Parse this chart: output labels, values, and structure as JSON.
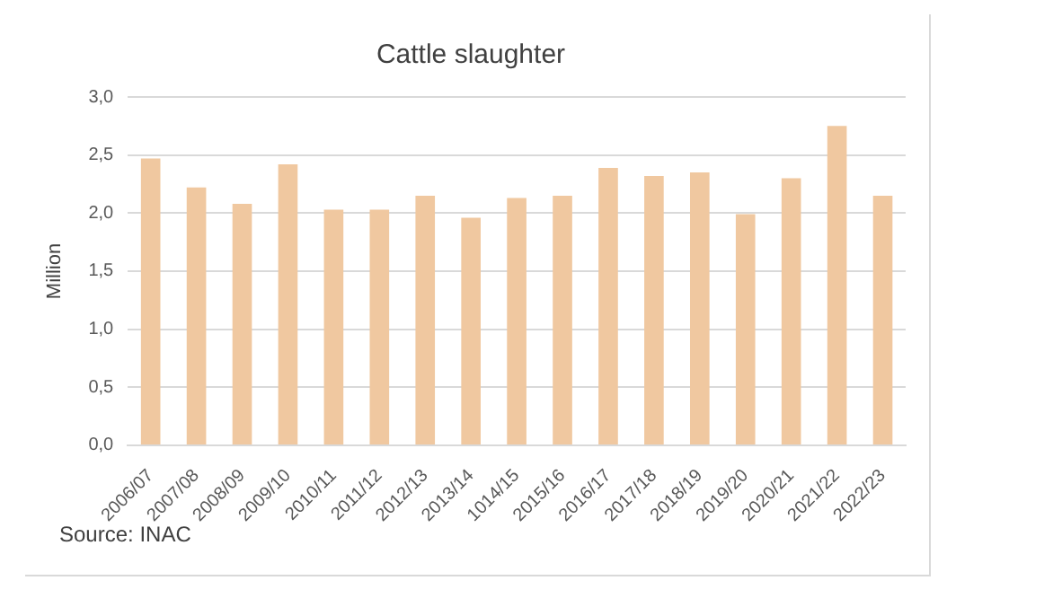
{
  "chart_data": {
    "type": "bar",
    "title": "Cattle slaughter",
    "ylabel": "Million",
    "categories": [
      "2006/07",
      "2007/08",
      "2008/09",
      "2009/10",
      "2010/11",
      "2011/12",
      "2012/13",
      "2013/14",
      "1014/15",
      "2015/16",
      "2016/17",
      "2017/18",
      "2018/19",
      "2019/20",
      "2020/21",
      "2021/22",
      "2022/23"
    ],
    "values": [
      2.47,
      2.22,
      2.08,
      2.42,
      2.03,
      2.03,
      2.15,
      1.96,
      2.13,
      2.15,
      2.39,
      2.32,
      2.35,
      1.99,
      2.3,
      2.75,
      2.15
    ],
    "color": "#f0c8a0",
    "ylim": [
      0,
      3
    ],
    "yticks": [
      {
        "value": 0,
        "label": "0,0"
      },
      {
        "value": 0.5,
        "label": "0,5"
      },
      {
        "value": 1,
        "label": "1,0"
      },
      {
        "value": 1.5,
        "label": "1,5"
      },
      {
        "value": 2,
        "label": "2,0"
      },
      {
        "value": 2.5,
        "label": "2,5"
      },
      {
        "value": 3,
        "label": "3,0"
      }
    ],
    "grid": "y",
    "legend": false,
    "annotations": [
      "Source: INAC"
    ]
  }
}
